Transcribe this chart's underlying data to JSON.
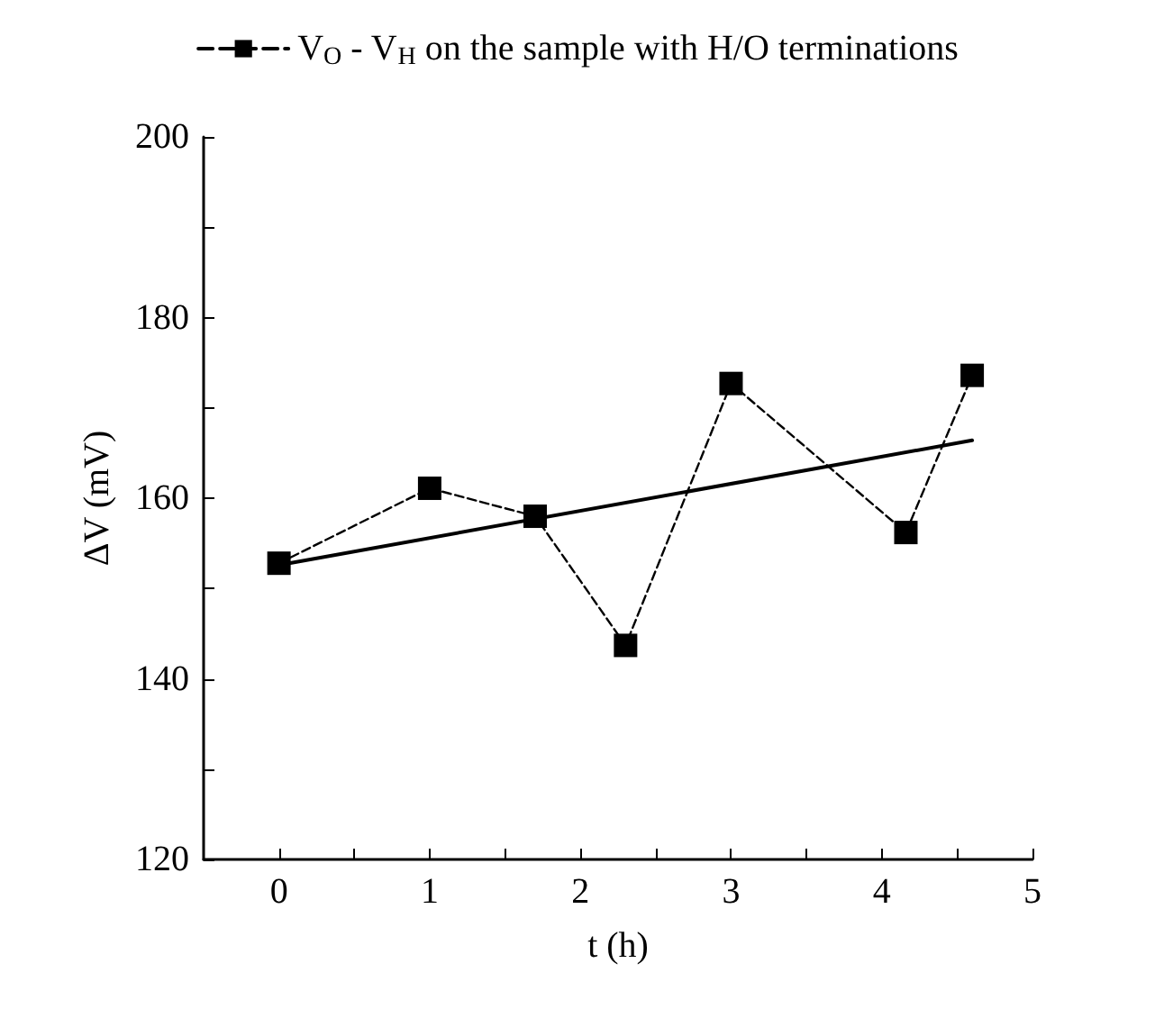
{
  "chart_data": {
    "type": "line",
    "xlabel": "t (h)",
    "ylabel": "ΔV (mV)",
    "xlim": [
      -0.5,
      5
    ],
    "ylim": [
      120,
      200
    ],
    "xticks": [
      0,
      {
        "value": 0.5,
        "label": null
      },
      1,
      {
        "value": 1.5,
        "label": null
      },
      2,
      {
        "value": 2.5,
        "label": null
      },
      3,
      {
        "value": 3.5,
        "label": null
      },
      4,
      {
        "value": 4.5,
        "label": null
      },
      5
    ],
    "yticks": [
      120,
      {
        "value": 130,
        "label": null
      },
      140,
      {
        "value": 150,
        "label": null
      },
      160,
      {
        "value": 170,
        "label": null
      },
      180,
      {
        "value": 190,
        "label": null
      },
      200
    ],
    "grid": false,
    "legend": "top",
    "series": [
      {
        "name": "V$_{O}$ - V$_{H}$ on the sample with H/O terminations",
        "color": "#000000",
        "marker": "square",
        "line_style": "dashed",
        "x": [
          0,
          1,
          1.7,
          2.3,
          3,
          4.16,
          4.6
        ],
        "values": [
          152.8,
          161.1,
          158.0,
          143.7,
          172.7,
          156.2,
          173.6
        ]
      },
      {
        "type": "line",
        "color": "#000000",
        "marker": "none",
        "line_style": "solid",
        "x": [
          0,
          4.6
        ],
        "values": [
          152.6,
          166.4
        ]
      }
    ]
  }
}
